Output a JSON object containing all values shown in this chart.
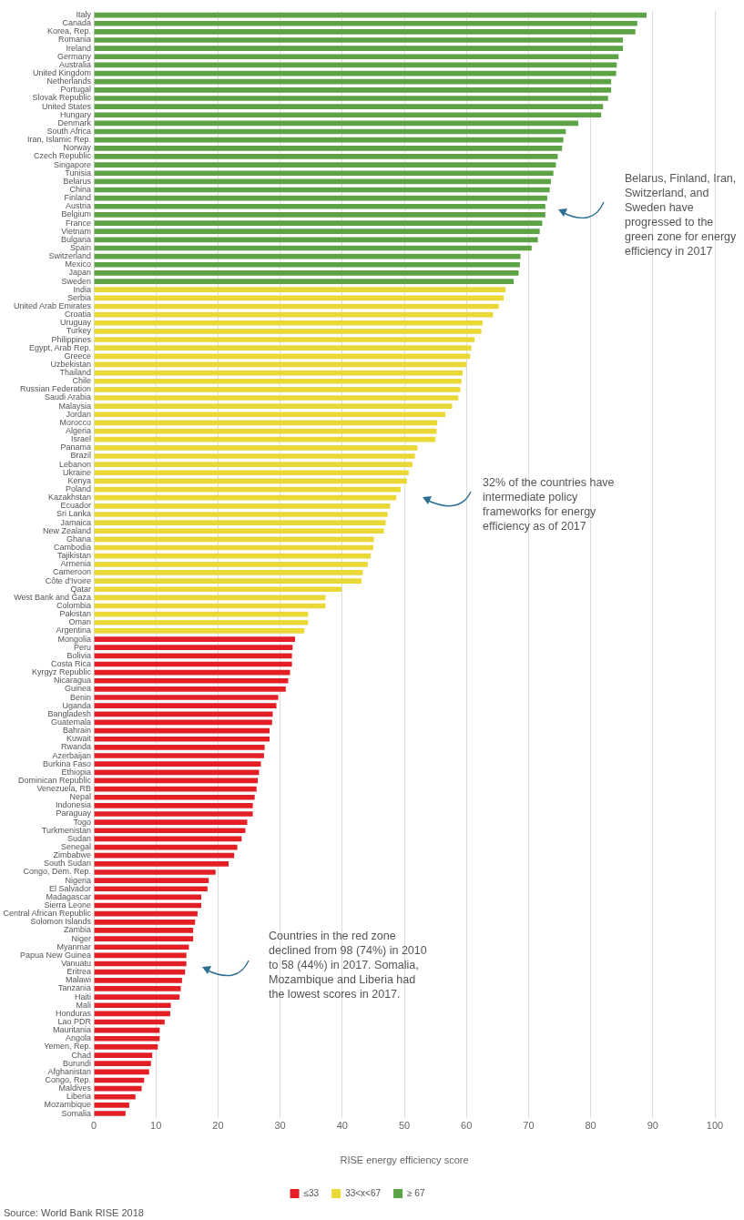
{
  "chart_data": {
    "type": "bar",
    "orientation": "horizontal",
    "stacked": true,
    "xlabel": "RISE energy efficiency score",
    "categories": [
      "Italy",
      "Canada",
      "Korea, Rep.",
      "Romania",
      "Ireland",
      "Germany",
      "Australia",
      "United Kingdom",
      "Netherlands",
      "Portugal",
      "Slovak Republic",
      "United States",
      "Hungary",
      "Denmark",
      "South Africa",
      "Iran, Islamic Rep.",
      "Norway",
      "Czech Republic",
      "Singapore",
      "Tunisia",
      "Belarus",
      "China",
      "Finland",
      "Austria",
      "Belgium",
      "France",
      "Vietnam",
      "Bulgaria",
      "Spain",
      "Switzerland",
      "Mexico",
      "Japan",
      "Sweden",
      "India",
      "Serbia",
      "United Arab Emirates",
      "Croatia",
      "Uruguay",
      "Turkey",
      "Philippines",
      "Egypt, Arab Rep.",
      "Greece",
      "Uzbekistan",
      "Thailand",
      "Chile",
      "Russian Federation",
      "Saudi Arabia",
      "Malaysia",
      "Jordan",
      "Morocco",
      "Algeria",
      "Israel",
      "Panama",
      "Brazil",
      "Lebanon",
      "Ukraine",
      "Kenya",
      "Poland",
      "Kazakhstan",
      "Ecuador",
      "Sri Lanka",
      "Jamaica",
      "New Zealand",
      "Ghana",
      "Cambodia",
      "Tajikistan",
      "Armenia",
      "Cameroon",
      "Côte d'Ivoire",
      "Qatar",
      "West Bank and Gaza",
      "Colombia",
      "Pakistan",
      "Oman",
      "Argentina",
      "Mongolia",
      "Peru",
      "Bolivia",
      "Costa Rica",
      "Kyrgyz Republic",
      "Nicaragua",
      "Guinea",
      "Benin",
      "Uganda",
      "Bangladesh",
      "Guatemala",
      "Bahrain",
      "Kuwait",
      "Rwanda",
      "Azerbaijan",
      "Burkina Faso",
      "Ethiopia",
      "Dominican Republic",
      "Venezuela, RB",
      "Nepal",
      "Indonesia",
      "Paraguay",
      "Togo",
      "Turkmenistan",
      "Sudan",
      "Senegal",
      "Zimbabwe",
      "South Sudan",
      "Congo, Dem. Rep.",
      "Nigeria",
      "El Salvador",
      "Madagascar",
      "Sierra Leone",
      "Central African Republic",
      "Solomon Islands",
      "Zambia",
      "Niger",
      "Myanmar",
      "Papua New Guinea",
      "Vanuatu",
      "Eritrea",
      "Malawi",
      "Tanzania",
      "Haiti",
      "Mali",
      "Honduras",
      "Lao PDR",
      "Mauritania",
      "Angola",
      "Yemen, Rep.",
      "Chad",
      "Burundi",
      "Afghanistan",
      "Congo, Rep.",
      "Maldives",
      "Liberia",
      "Mozambique",
      "Somalia"
    ],
    "series": [
      {
        "name": "≤33",
        "color": "#e31e24",
        "values": [
          null,
          null,
          null,
          null,
          null,
          null,
          null,
          null,
          null,
          null,
          null,
          null,
          null,
          null,
          null,
          null,
          null,
          null,
          null,
          null,
          null,
          null,
          null,
          null,
          null,
          null,
          null,
          null,
          null,
          null,
          null,
          null,
          null,
          null,
          null,
          null,
          null,
          null,
          null,
          null,
          null,
          null,
          null,
          null,
          null,
          null,
          null,
          null,
          null,
          null,
          null,
          null,
          null,
          null,
          null,
          null,
          null,
          null,
          null,
          null,
          null,
          null,
          null,
          null,
          null,
          null,
          null,
          null,
          null,
          null,
          null,
          null,
          null,
          null,
          null,
          32.4,
          32.0,
          31.9,
          31.9,
          31.6,
          31.3,
          30.9,
          29.7,
          29.4,
          28.8,
          28.7,
          28.3,
          28.3,
          27.5,
          27.4,
          26.9,
          26.6,
          26.4,
          26.2,
          25.9,
          25.6,
          25.6,
          24.7,
          24.4,
          23.8,
          23.1,
          22.6,
          21.7,
          19.6,
          18.5,
          18.3,
          17.3,
          17.3,
          16.7,
          16.3,
          16.0,
          16.0,
          15.3,
          14.9,
          14.9,
          14.7,
          14.2,
          14.0,
          13.8,
          12.4,
          12.3,
          11.4,
          10.6,
          10.6,
          10.3,
          9.4,
          9.2,
          8.9,
          8.1,
          7.7,
          6.7,
          5.7,
          5.1
        ]
      },
      {
        "name": "33<x<67",
        "color": "#e9d836",
        "values": [
          null,
          null,
          null,
          null,
          null,
          null,
          null,
          null,
          null,
          null,
          null,
          null,
          null,
          null,
          null,
          null,
          null,
          null,
          null,
          null,
          null,
          null,
          null,
          null,
          null,
          null,
          null,
          null,
          null,
          null,
          null,
          null,
          null,
          66.3,
          66.0,
          65.2,
          64.3,
          62.6,
          62.4,
          61.3,
          60.8,
          60.6,
          60.0,
          59.4,
          59.2,
          59.0,
          58.7,
          57.7,
          56.6,
          55.3,
          55.2,
          55.0,
          52.1,
          51.7,
          51.3,
          50.7,
          50.4,
          49.4,
          48.7,
          47.7,
          47.3,
          47.0,
          46.7,
          45.1,
          45.0,
          44.6,
          44.1,
          43.3,
          43.1,
          39.9,
          37.3,
          37.3,
          34.5,
          34.5,
          33.9,
          null,
          null,
          null,
          null,
          null,
          null,
          null,
          null,
          null,
          null,
          null,
          null,
          null,
          null,
          null,
          null,
          null,
          null,
          null,
          null,
          null,
          null,
          null,
          null,
          null,
          null,
          null,
          null,
          null,
          null,
          null,
          null,
          null,
          null,
          null,
          null,
          null,
          null,
          null,
          null,
          null,
          null,
          null,
          null,
          null,
          null,
          null,
          null,
          null,
          null,
          null,
          null,
          null,
          null,
          null,
          null,
          null,
          null
        ]
      },
      {
        "name": "≥ 67",
        "color": "#5ba345",
        "values": [
          89.0,
          87.5,
          87.2,
          85.2,
          85.2,
          84.5,
          84.2,
          84.1,
          83.3,
          83.3,
          82.8,
          82.0,
          81.7,
          78.0,
          76.0,
          75.6,
          75.4,
          74.7,
          74.4,
          74.0,
          73.6,
          73.4,
          73.0,
          72.7,
          72.7,
          72.2,
          71.8,
          71.5,
          70.5,
          68.7,
          68.6,
          68.4,
          67.6,
          null,
          null,
          null,
          null,
          null,
          null,
          null,
          null,
          null,
          null,
          null,
          null,
          null,
          null,
          null,
          null,
          null,
          null,
          null,
          null,
          null,
          null,
          null,
          null,
          null,
          null,
          null,
          null,
          null,
          null,
          null,
          null,
          null,
          null,
          null,
          null,
          null,
          null,
          null,
          null,
          null,
          null,
          null,
          null,
          null,
          null,
          null,
          null,
          null,
          null,
          null,
          null,
          null,
          null,
          null,
          null,
          null,
          null,
          null,
          null,
          null,
          null,
          null,
          null,
          null,
          null,
          null,
          null,
          null,
          null,
          null,
          null,
          null,
          null,
          null,
          null,
          null,
          null,
          null,
          null,
          null,
          null,
          null,
          null,
          null,
          null,
          null,
          null,
          null,
          null,
          null,
          null,
          null,
          null,
          null,
          null,
          null,
          null,
          null,
          null
        ]
      }
    ],
    "xlim": [
      0,
      100
    ],
    "xticks": [
      0,
      10,
      20,
      30,
      40,
      50,
      60,
      70,
      80,
      90,
      100
    ],
    "grid": "x",
    "legend": "bottom",
    "annotations": [
      "Belarus, Finland, Iran, Switzerland, and Sweden have progressed to the green zone for energy efficiency in 2017",
      "32% of the countries have intermediate policy frameworks for energy efficiency as of 2017",
      "Countries in the red zone declined from 98 (74%) in 2010 to 58 (44%) in 2017. Somalia, Mozambique and Liberia had the lowest scores in 2017.",
      "Source: World Bank RISE 2018"
    ]
  }
}
